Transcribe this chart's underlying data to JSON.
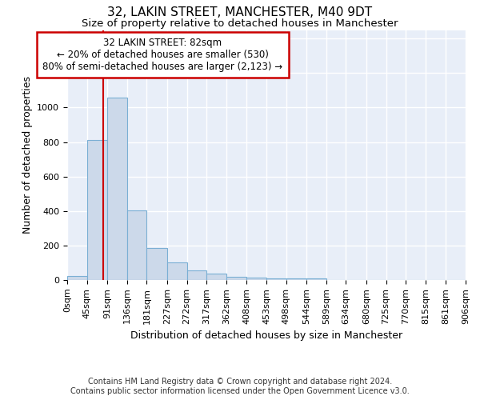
{
  "title1": "32, LAKIN STREET, MANCHESTER, M40 9DT",
  "title2": "Size of property relative to detached houses in Manchester",
  "xlabel": "Distribution of detached houses by size in Manchester",
  "ylabel": "Number of detached properties",
  "footnote1": "Contains HM Land Registry data © Crown copyright and database right 2024.",
  "footnote2": "Contains public sector information licensed under the Open Government Licence v3.0.",
  "bin_edges": [
    0,
    45,
    91,
    136,
    181,
    227,
    272,
    317,
    362,
    408,
    453,
    498,
    544,
    589,
    634,
    680,
    725,
    770,
    815,
    861,
    906
  ],
  "bar_heights": [
    25,
    810,
    1060,
    405,
    185,
    100,
    55,
    35,
    20,
    15,
    10,
    10,
    10,
    0,
    0,
    0,
    0,
    0,
    0,
    0
  ],
  "bar_color": "#ccd9ea",
  "bar_edge_color": "#7aafd4",
  "bar_edge_width": 0.8,
  "red_line_x": 82,
  "red_line_color": "#cc0000",
  "annotation_line1": "32 LAKIN STREET: 82sqm",
  "annotation_line2": "← 20% of detached houses are smaller (530)",
  "annotation_line3": "80% of semi-detached houses are larger (2,123) →",
  "annotation_box_color": "white",
  "annotation_box_edge_color": "#cc0000",
  "ylim": [
    0,
    1450
  ],
  "xlim_max": 906,
  "background_color": "#e8eef8",
  "grid_color": "white",
  "title1_fontsize": 11,
  "title2_fontsize": 9.5,
  "xlabel_fontsize": 9,
  "ylabel_fontsize": 9,
  "tick_fontsize": 8,
  "annotation_fontsize": 8.5,
  "footnote_fontsize": 7
}
